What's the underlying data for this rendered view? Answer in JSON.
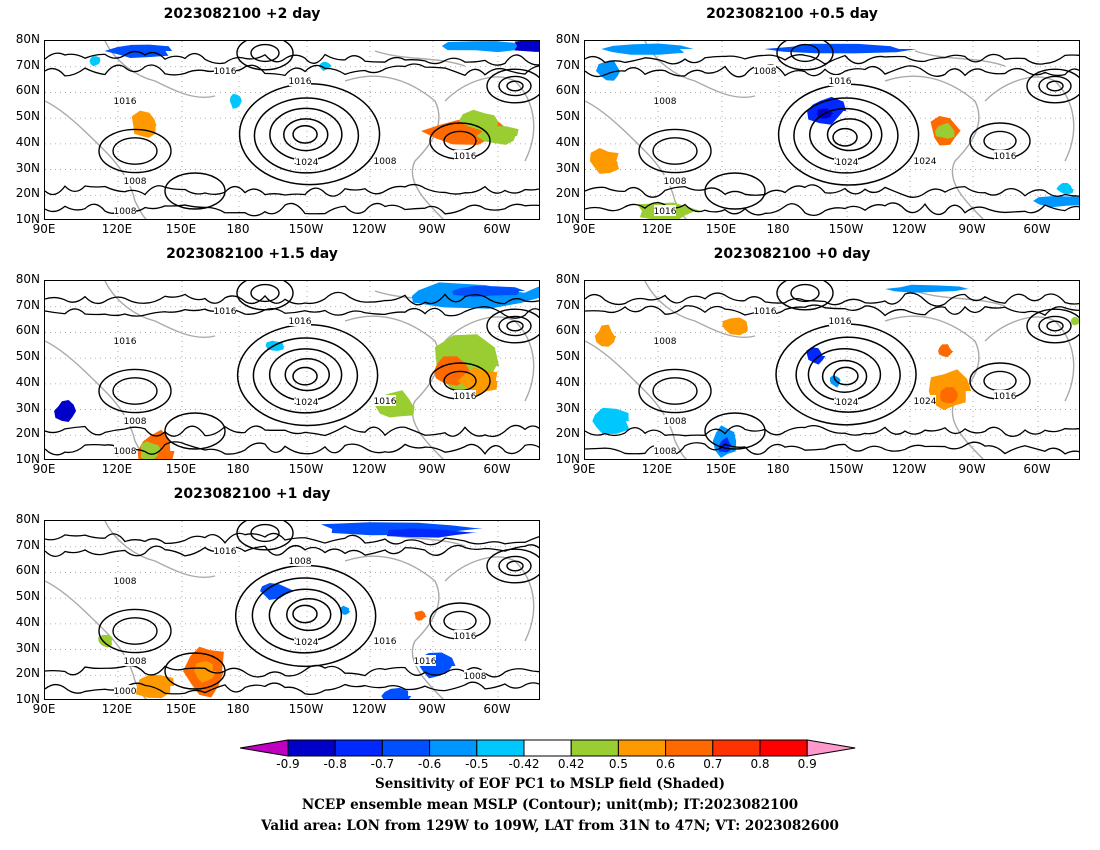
{
  "panels": [
    {
      "title": "2023082100  +2 day",
      "highs": [
        "1024"
      ],
      "contour_labels": [
        "1016",
        "1016",
        "1008",
        "1016",
        "1024",
        "1008",
        "1016",
        "1008"
      ]
    },
    {
      "title": "2023082100  +0.5 day",
      "highs": [
        "1024"
      ],
      "contour_labels": [
        "1008",
        "1008",
        "1016",
        "1016",
        "1000",
        "1024",
        "1016",
        "1008"
      ]
    },
    {
      "title": "2023082100  +1.5 day",
      "highs": [
        "1024"
      ],
      "contour_labels": [
        "1016",
        "1016",
        "1008",
        "1016",
        "1024",
        "1016",
        "1016",
        "1008"
      ]
    },
    {
      "title": "2023082100  +0 day",
      "highs": [
        "1024"
      ],
      "contour_labels": [
        "1008",
        "1016",
        "1008",
        "1016",
        "1000",
        "1024",
        "1016",
        "1008"
      ]
    },
    {
      "title": "2023082100  +1 day",
      "highs": [
        "1024"
      ],
      "contour_labels": [
        "1008",
        "1016",
        "1000",
        "1008",
        "1024",
        "1016",
        "1016",
        "1008",
        "1016",
        "1008"
      ]
    }
  ],
  "axes": {
    "lat_ticks": [
      "80N",
      "70N",
      "60N",
      "50N",
      "40N",
      "30N",
      "20N",
      "10N"
    ],
    "lon_ticks": [
      "90E",
      "120E",
      "150E",
      "180",
      "150W",
      "120W",
      "90W",
      "60W"
    ]
  },
  "colorbar": {
    "labels": [
      "-0.9",
      "-0.8",
      "-0.7",
      "-0.6",
      "-0.5",
      "-0.42",
      "0.42",
      "0.5",
      "0.6",
      "0.7",
      "0.8",
      "0.9"
    ],
    "colors": [
      "#c000c0",
      "#0000c8",
      "#0028ff",
      "#0050ff",
      "#0096ff",
      "#00c8ff",
      "#ffffff",
      "#9acd32",
      "#ff9900",
      "#ff6a00",
      "#ff3300",
      "#ff0000",
      "#ff99cc"
    ]
  },
  "caption": {
    "line1": "Sensitivity of EOF PC1 to MSLP field (Shaded)",
    "line2": "NCEP ensemble mean MSLP (Contour); unit(mb); IT:2023082100",
    "line3": "Valid area: LON from 129W to 109W, LAT from 31N to 47N; VT: 2023082600"
  }
}
